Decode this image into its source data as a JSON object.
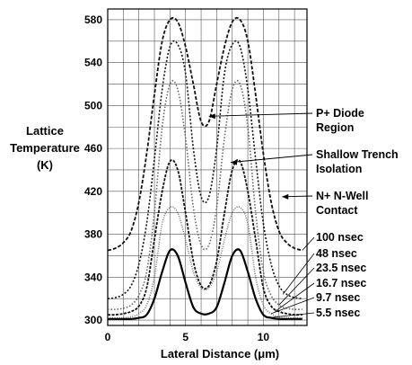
{
  "chart_data": {
    "type": "line",
    "title": "",
    "xlabel": "Lateral Distance (μm)",
    "ylabel_lines": [
      "Lattice",
      "Temperature",
      "(K)"
    ],
    "xlim": [
      0,
      12.8
    ],
    "ylim": [
      295,
      590
    ],
    "x_ticks": [
      0,
      5,
      10
    ],
    "y_ticks": [
      300,
      340,
      380,
      420,
      460,
      500,
      540,
      580
    ],
    "grid": true,
    "x": [
      0,
      0.5,
      1,
      1.5,
      2,
      2.5,
      3,
      3.5,
      4,
      4.5,
      5,
      5.5,
      6,
      6.5,
      7,
      7.5,
      8,
      8.5,
      9,
      9.5,
      10,
      10.5,
      11,
      11.5,
      12,
      12.5
    ],
    "series": [
      {
        "name": "100 nsec",
        "values": [
          365,
          367,
          372,
          383,
          410,
          455,
          510,
          560,
          580,
          578,
          555,
          520,
          485,
          485,
          520,
          555,
          578,
          580,
          560,
          510,
          455,
          410,
          383,
          372,
          367,
          365
        ]
      },
      {
        "name": "48 nsec",
        "values": [
          320,
          321,
          324,
          332,
          352,
          390,
          450,
          515,
          555,
          557,
          530,
          460,
          415,
          415,
          460,
          530,
          557,
          555,
          515,
          450,
          390,
          352,
          332,
          324,
          321,
          320
        ]
      },
      {
        "name": "23.5 nsec",
        "values": [
          310,
          310,
          311,
          314,
          323,
          345,
          400,
          480,
          520,
          515,
          470,
          405,
          370,
          370,
          405,
          470,
          515,
          520,
          480,
          400,
          345,
          323,
          314,
          311,
          310,
          310
        ]
      },
      {
        "name": "16.7 nsec",
        "values": [
          305,
          305,
          306,
          308,
          313,
          330,
          375,
          420,
          448,
          440,
          400,
          355,
          332,
          332,
          355,
          400,
          440,
          448,
          420,
          375,
          330,
          313,
          308,
          306,
          305,
          305
        ]
      },
      {
        "name": "9.7 nsec",
        "values": [
          302,
          302,
          302,
          303,
          306,
          314,
          340,
          390,
          405,
          400,
          375,
          345,
          330,
          330,
          345,
          375,
          400,
          405,
          390,
          340,
          314,
          306,
          303,
          302,
          302,
          302
        ]
      },
      {
        "name": "5.5 nsec",
        "values": [
          301,
          301,
          301,
          301,
          302,
          305,
          320,
          345,
          365,
          360,
          335,
          312,
          306,
          306,
          312,
          335,
          360,
          365,
          345,
          320,
          305,
          302,
          301,
          301,
          301,
          301
        ]
      }
    ],
    "annotations": [
      {
        "lines": [
          "P+ Diode",
          "Region"
        ],
        "x": 6.5,
        "y": 490
      },
      {
        "lines": [
          "Shallow Trench",
          "Isolation"
        ],
        "x": 7.9,
        "y": 447
      },
      {
        "lines": [
          "N+ N-Well",
          "Contact"
        ],
        "x": 11.2,
        "y": 415
      }
    ]
  }
}
